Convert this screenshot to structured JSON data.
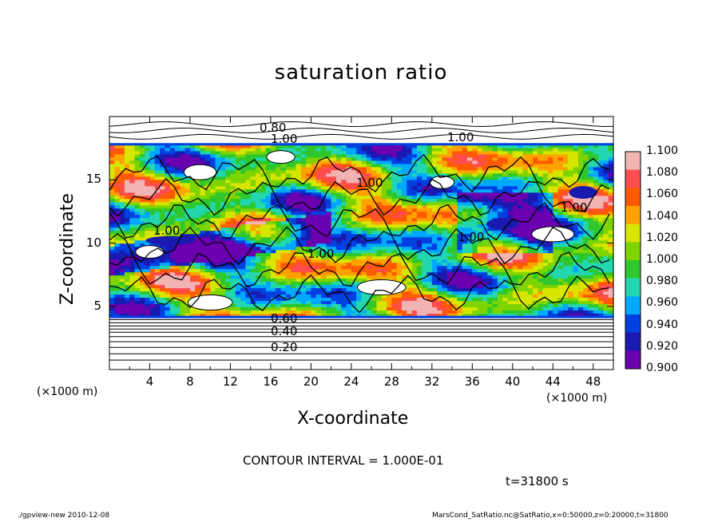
{
  "chart_data": {
    "type": "heatmap",
    "title": "saturation ratio",
    "xlabel": "X-coordinate",
    "ylabel": "Z-coordinate",
    "x_unit_label": "(×1000 m)",
    "xlim": [
      0,
      50
    ],
    "ylim": [
      0,
      20
    ],
    "x_ticks": [
      4,
      8,
      12,
      16,
      20,
      24,
      28,
      32,
      36,
      40,
      44,
      48
    ],
    "y_ticks": [
      5,
      10,
      15
    ],
    "colorbar": {
      "levels": [
        "1.100",
        "1.080",
        "1.060",
        "1.040",
        "1.020",
        "1.000",
        "0.980",
        "0.960",
        "0.940",
        "0.920",
        "0.900"
      ],
      "colors": [
        "#f2b3b3",
        "#ff4d4d",
        "#ff5a00",
        "#ffa200",
        "#d7e600",
        "#7ed400",
        "#2ec82e",
        "#22d7b0",
        "#00a8ff",
        "#0040e0",
        "#1a1ab0",
        "#6a00b0"
      ]
    },
    "contour_labels": [
      "0.80",
      "1.00",
      "1.00",
      "1.00",
      "1.00",
      "1.00",
      "1.00",
      "1.00",
      "0.60",
      "0.40",
      "0.20"
    ],
    "contour_interval": "CONTOUR INTERVAL = 1.000E-01",
    "time": "t=31800 s"
  },
  "footer": {
    "left": "./gpview-new  2010-12-08",
    "right": "MarsCond_SatRatio.nc@SatRatio,x=0:50000,z=0:20000,t=31800"
  }
}
